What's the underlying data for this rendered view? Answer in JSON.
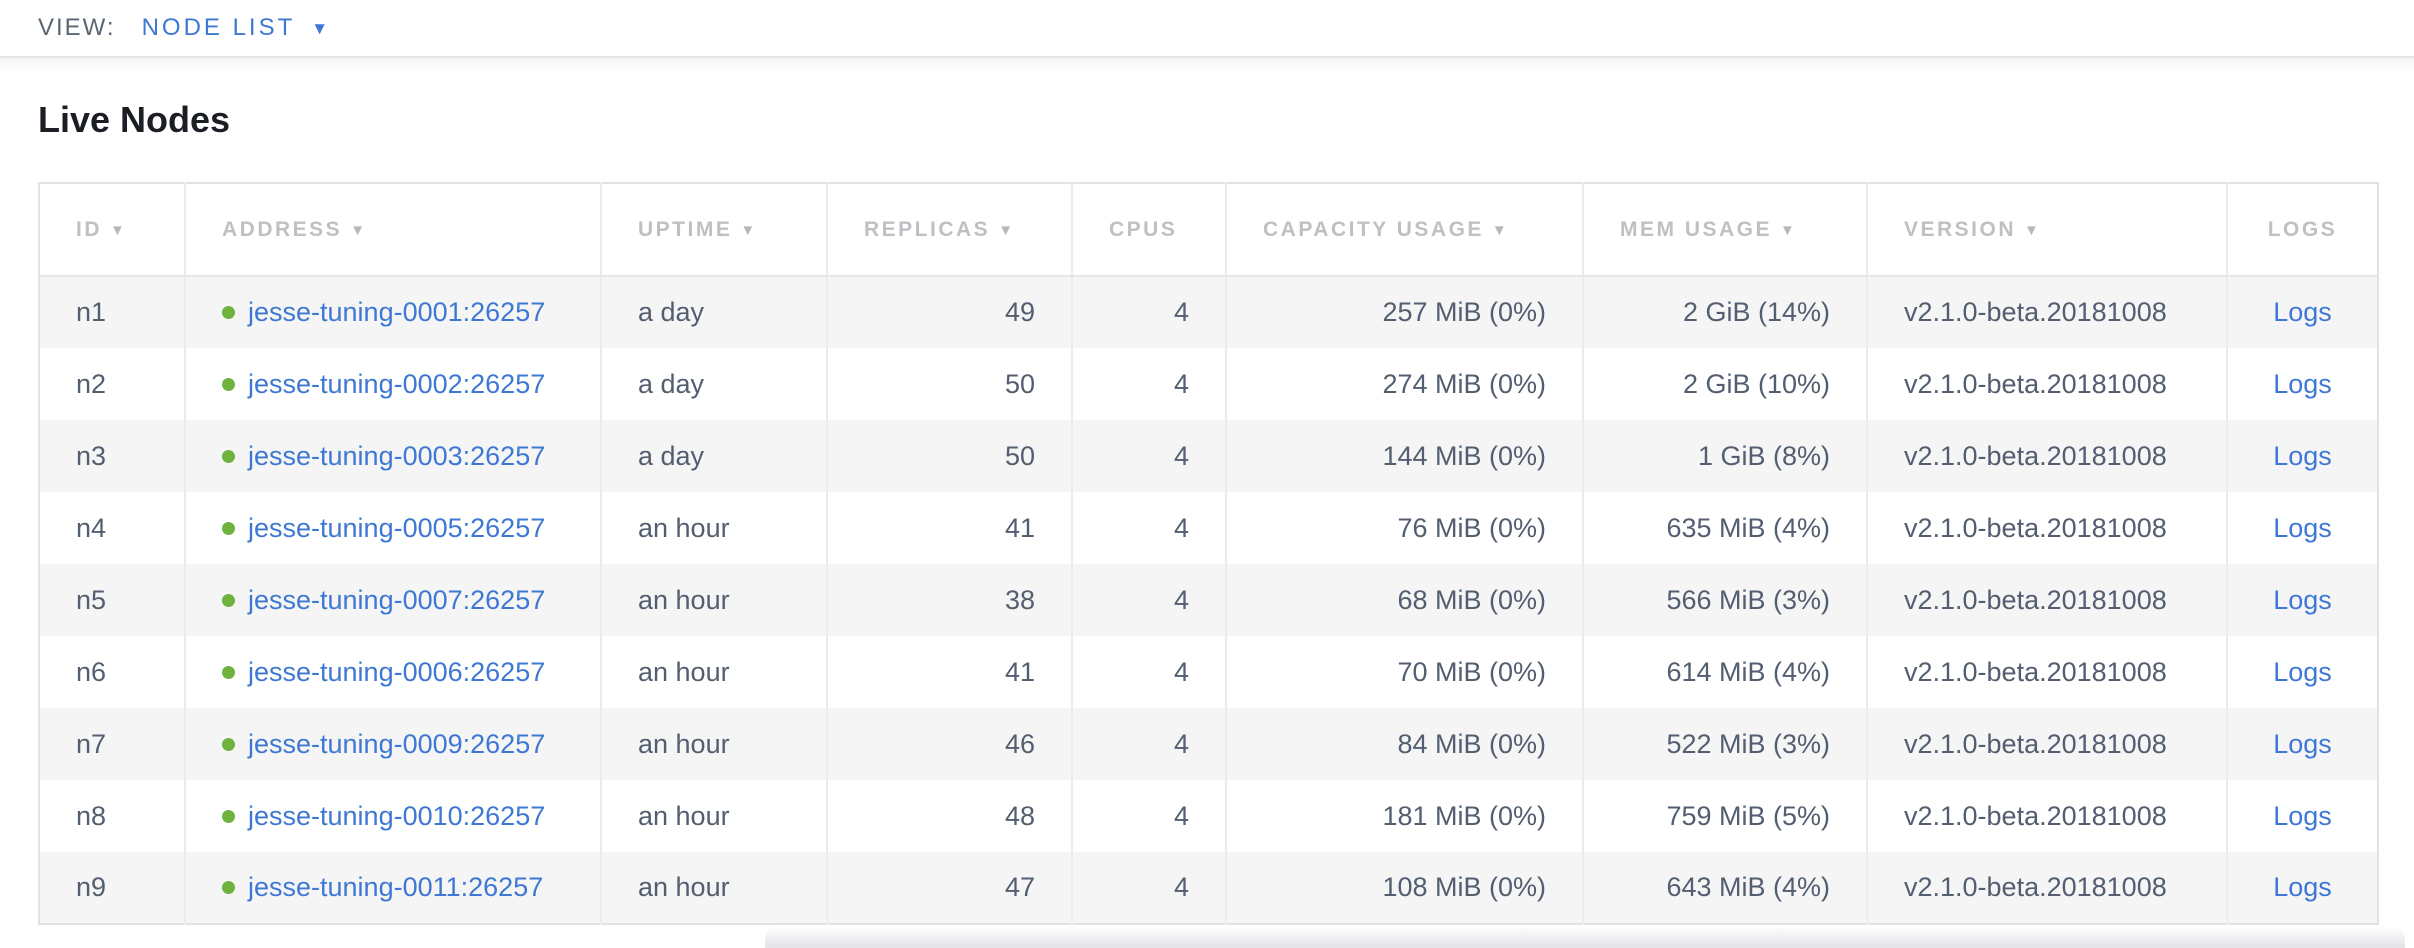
{
  "view_bar": {
    "label": "VIEW:",
    "selected_view": "NODE LIST"
  },
  "page": {
    "title": "Live Nodes"
  },
  "table": {
    "logs_label": "Logs",
    "columns": [
      {
        "key": "id",
        "label": "ID",
        "sortable": true
      },
      {
        "key": "address",
        "label": "ADDRESS",
        "sortable": true
      },
      {
        "key": "uptime",
        "label": "UPTIME",
        "sortable": true
      },
      {
        "key": "replicas",
        "label": "REPLICAS",
        "sortable": true
      },
      {
        "key": "cpus",
        "label": "CPUS",
        "sortable": false
      },
      {
        "key": "capacity_usage",
        "label": "CAPACITY USAGE",
        "sortable": true
      },
      {
        "key": "mem_usage",
        "label": "MEM USAGE",
        "sortable": true
      },
      {
        "key": "version",
        "label": "VERSION",
        "sortable": true
      },
      {
        "key": "logs",
        "label": "LOGS",
        "sortable": false
      }
    ],
    "rows": [
      {
        "id": "n1",
        "status": "healthy",
        "address": "jesse-tuning-0001:26257",
        "uptime": "a day",
        "replicas": "49",
        "cpus": "4",
        "capacity_usage": "257 MiB (0%)",
        "mem_usage": "2 GiB (14%)",
        "version": "v2.1.0-beta.20181008"
      },
      {
        "id": "n2",
        "status": "healthy",
        "address": "jesse-tuning-0002:26257",
        "uptime": "a day",
        "replicas": "50",
        "cpus": "4",
        "capacity_usage": "274 MiB (0%)",
        "mem_usage": "2 GiB (10%)",
        "version": "v2.1.0-beta.20181008"
      },
      {
        "id": "n3",
        "status": "healthy",
        "address": "jesse-tuning-0003:26257",
        "uptime": "a day",
        "replicas": "50",
        "cpus": "4",
        "capacity_usage": "144 MiB (0%)",
        "mem_usage": "1 GiB (8%)",
        "version": "v2.1.0-beta.20181008"
      },
      {
        "id": "n4",
        "status": "healthy",
        "address": "jesse-tuning-0005:26257",
        "uptime": "an hour",
        "replicas": "41",
        "cpus": "4",
        "capacity_usage": "76 MiB (0%)",
        "mem_usage": "635 MiB (4%)",
        "version": "v2.1.0-beta.20181008"
      },
      {
        "id": "n5",
        "status": "healthy",
        "address": "jesse-tuning-0007:26257",
        "uptime": "an hour",
        "replicas": "38",
        "cpus": "4",
        "capacity_usage": "68 MiB (0%)",
        "mem_usage": "566 MiB (3%)",
        "version": "v2.1.0-beta.20181008"
      },
      {
        "id": "n6",
        "status": "healthy",
        "address": "jesse-tuning-0006:26257",
        "uptime": "an hour",
        "replicas": "41",
        "cpus": "4",
        "capacity_usage": "70 MiB (0%)",
        "mem_usage": "614 MiB (4%)",
        "version": "v2.1.0-beta.20181008"
      },
      {
        "id": "n7",
        "status": "healthy",
        "address": "jesse-tuning-0009:26257",
        "uptime": "an hour",
        "replicas": "46",
        "cpus": "4",
        "capacity_usage": "84 MiB (0%)",
        "mem_usage": "522 MiB (3%)",
        "version": "v2.1.0-beta.20181008"
      },
      {
        "id": "n8",
        "status": "healthy",
        "address": "jesse-tuning-0010:26257",
        "uptime": "an hour",
        "replicas": "48",
        "cpus": "4",
        "capacity_usage": "181 MiB (0%)",
        "mem_usage": "759 MiB (5%)",
        "version": "v2.1.0-beta.20181008"
      },
      {
        "id": "n9",
        "status": "healthy",
        "address": "jesse-tuning-0011:26257",
        "uptime": "an hour",
        "replicas": "47",
        "cpus": "4",
        "capacity_usage": "108 MiB (0%)",
        "mem_usage": "643 MiB (4%)",
        "version": "v2.1.0-beta.20181008"
      }
    ]
  },
  "colors": {
    "link_blue": "#3e78d4",
    "healthy_green": "#6db33d",
    "header_text": "#bfc0c4",
    "cell_text": "#535e70",
    "row_stripe": "#f5f5f6",
    "table_border": "#e2e2e4"
  }
}
